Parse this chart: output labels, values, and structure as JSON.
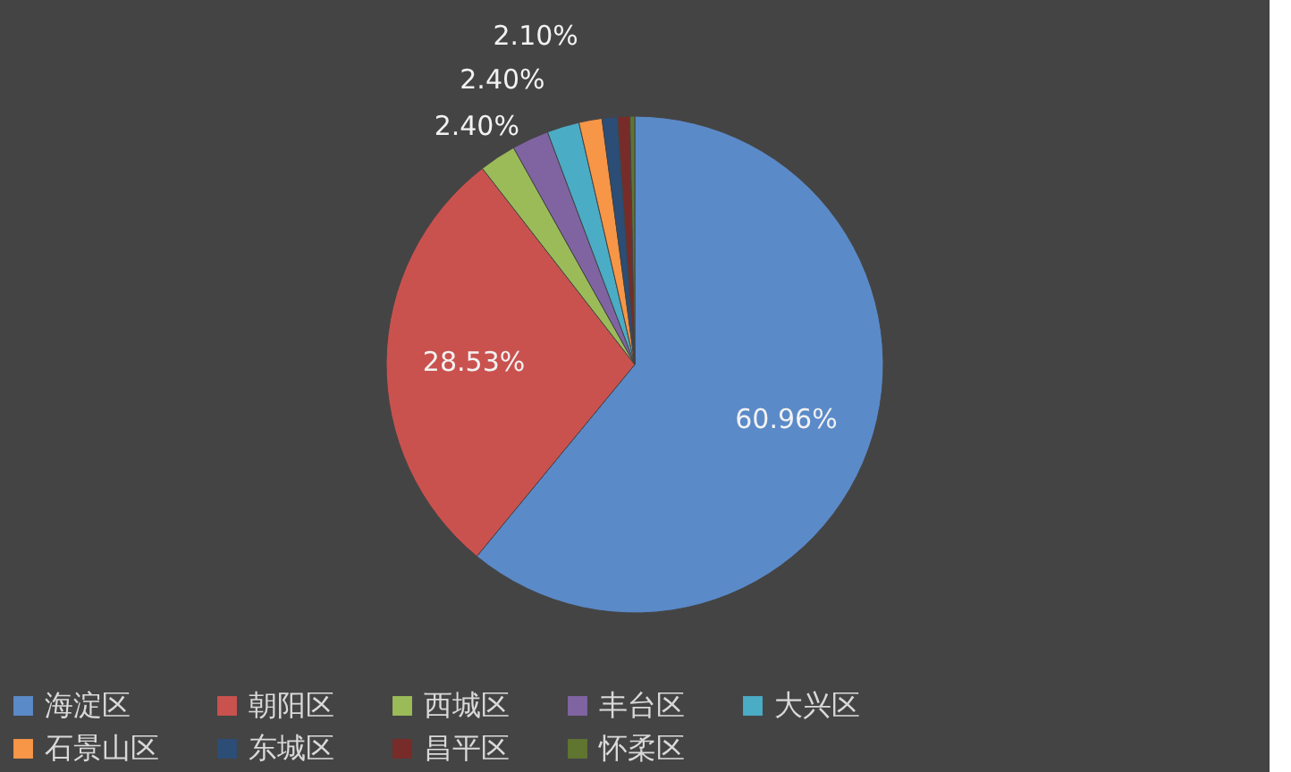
{
  "chart_data": {
    "type": "pie",
    "categories": [
      "海淀区",
      "朝阳区",
      "西城区",
      "丰台区",
      "大兴区",
      "石景山区",
      "东城区",
      "昌平区",
      "怀柔区"
    ],
    "values": [
      60.96,
      28.53,
      2.4,
      2.4,
      2.1,
      1.5,
      1.0,
      0.8,
      0.31
    ],
    "value_labels": [
      "60.96%",
      "28.53%",
      "2.40%",
      "2.40%",
      "2.10%",
      null,
      null,
      null,
      null
    ],
    "colors": [
      "#5b8ac8",
      "#c9524f",
      "#9bbb59",
      "#8064a2",
      "#4bacc6",
      "#f79646",
      "#2c4d75",
      "#772c2a",
      "#5f7530"
    ],
    "legend": "bottom"
  }
}
